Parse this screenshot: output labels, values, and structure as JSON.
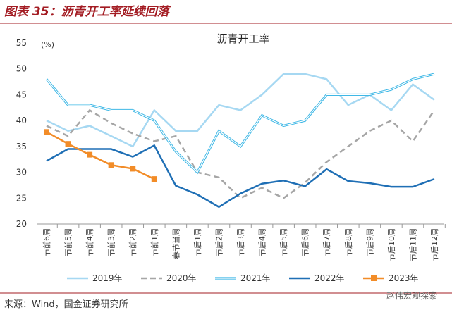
{
  "header": "图表 35：沥青开工率延续回落",
  "source": "来源：Wind，国金证券研究所",
  "watermark": "赵伟宏观探索",
  "chart_data": {
    "type": "line",
    "title": "沥青开工率",
    "y_label": "(%)",
    "categories": [
      "节前6周",
      "节前5周",
      "节前4周",
      "节前3周",
      "节前2周",
      "节前1周",
      "春节当周",
      "节后1周",
      "节后2周",
      "节后3周",
      "节后4周",
      "节后5周",
      "节后6周",
      "节后7周",
      "节后8周",
      "节后9周",
      "节后10周",
      "节后11周",
      "节后12周"
    ],
    "series": [
      {
        "name": "2019年",
        "color": "#a6d8f2",
        "line_style": "solid",
        "values": [
          40,
          38,
          39,
          37,
          35,
          42,
          38,
          38,
          43,
          42,
          45,
          49,
          49,
          48,
          43,
          45,
          42,
          47,
          44
        ]
      },
      {
        "name": "2020年",
        "color": "#a6a6a6",
        "line_style": "dashed",
        "values": [
          39,
          37,
          42,
          39.5,
          37.5,
          36,
          37,
          30,
          29,
          25,
          27,
          25,
          28,
          32,
          35,
          38,
          40,
          36,
          42
        ]
      },
      {
        "name": "2021年",
        "color": "#3fb8e6",
        "line_style": "double",
        "values": [
          48,
          43,
          43,
          42,
          42,
          40,
          34,
          30,
          38,
          35,
          41,
          39,
          40,
          45,
          45,
          45,
          46,
          48,
          49
        ]
      },
      {
        "name": "2022年",
        "color": "#1f6fb5",
        "line_style": "solid",
        "values": [
          32.2,
          34.5,
          34.5,
          34.5,
          33,
          35.2,
          27.4,
          25.7,
          23.3,
          25.9,
          27.8,
          28.4,
          27.3,
          30.6,
          28.3,
          27.9,
          27.2,
          27.2,
          28.7
        ]
      },
      {
        "name": "2023年",
        "color": "#f28c28",
        "line_style": "solid",
        "marker": "square",
        "values": [
          37.8,
          35.5,
          33.4,
          31.4,
          30.7,
          28.7,
          null,
          null,
          null,
          null,
          null,
          null,
          null,
          null,
          null,
          null,
          null,
          null,
          null
        ]
      }
    ],
    "ylim": [
      20,
      55
    ],
    "yticks": [
      20,
      25,
      30,
      35,
      40,
      45,
      50,
      55
    ],
    "grid": false
  }
}
